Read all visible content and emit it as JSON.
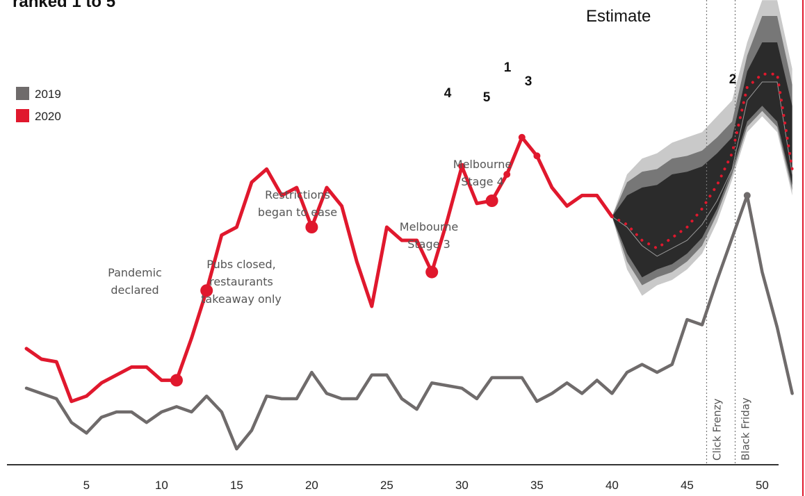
{
  "header": {
    "title_fragment": "ranked 1 to 5",
    "estimate_label": "Estimate"
  },
  "legend": [
    {
      "label": "2019",
      "color": "#6f6b6b"
    },
    {
      "label": "2020",
      "color": "#e0182d"
    }
  ],
  "annotations": [
    {
      "lines": [
        "Pandemic",
        "declared"
      ],
      "week": 11
    },
    {
      "lines": [
        "Pubs closed,",
        "restaurants",
        "takeaway only"
      ],
      "week": 13
    },
    {
      "lines": [
        "Restrictions",
        "began to ease"
      ],
      "week": 20
    },
    {
      "lines": [
        "Melbourne",
        "Stage 3"
      ],
      "week": 28
    },
    {
      "lines": [
        "Melbourne",
        "Stage 4"
      ],
      "week": 32
    }
  ],
  "event_lines": [
    {
      "label": "Click Frenzy",
      "week": 46.3
    },
    {
      "label": "Black Friday",
      "week": 48.2
    }
  ],
  "rank_labels": [
    {
      "label": "1",
      "week": 34
    },
    {
      "label": "2",
      "week": 49
    },
    {
      "label": "3",
      "week": 35
    },
    {
      "label": "4",
      "week": 30
    },
    {
      "label": "5",
      "week": 33
    }
  ],
  "chart_data": {
    "type": "line",
    "x_ticks": [
      5,
      10,
      15,
      20,
      25,
      30,
      35,
      40,
      45,
      50
    ],
    "xlim": [
      1,
      52
    ],
    "series": [
      {
        "name": "2019",
        "color": "#6f6b6b",
        "x": [
          1,
          2,
          3,
          4,
          5,
          6,
          7,
          8,
          9,
          10,
          11,
          12,
          13,
          14,
          15,
          16,
          17,
          18,
          19,
          20,
          21,
          22,
          23,
          24,
          25,
          26,
          27,
          28,
          29,
          30,
          31,
          32,
          33,
          34,
          35,
          36,
          37,
          38,
          39,
          40,
          41,
          42,
          43,
          44,
          45,
          46,
          47,
          48,
          49,
          50,
          51,
          52
        ],
        "y": [
          29,
          27,
          25,
          16,
          12,
          18,
          20,
          20,
          16,
          20,
          22,
          20,
          26,
          20,
          6,
          13,
          26,
          25,
          25,
          35,
          27,
          25,
          25,
          34,
          34,
          25,
          21,
          31,
          30,
          29,
          25,
          33,
          33,
          33,
          24,
          27,
          31,
          27,
          32,
          27,
          35,
          38,
          35,
          38,
          55,
          53,
          70,
          86,
          102,
          73,
          52,
          27
        ]
      },
      {
        "name": "2020",
        "color": "#e0182d",
        "x": [
          1,
          2,
          3,
          4,
          5,
          6,
          7,
          8,
          9,
          10,
          11,
          12,
          13,
          14,
          15,
          16,
          17,
          18,
          19,
          20,
          21,
          22,
          23,
          24,
          25,
          26,
          27,
          28,
          29,
          30,
          31,
          32,
          33,
          34,
          35,
          36,
          37,
          38,
          39,
          40
        ],
        "y": [
          44,
          40,
          39,
          24,
          26,
          31,
          34,
          37,
          37,
          32,
          32,
          48,
          66,
          87,
          90,
          107,
          112,
          102,
          105,
          90,
          105,
          98,
          77,
          60,
          90,
          85,
          85,
          73,
          92,
          113,
          99,
          100,
          110,
          124,
          117,
          105,
          98,
          102,
          102,
          94
        ]
      },
      {
        "name": "Estimate",
        "color": "#e0182d",
        "x": [
          40,
          41,
          42,
          43,
          44,
          45,
          46,
          47,
          48,
          49,
          50,
          51,
          52
        ],
        "y": [
          94,
          91,
          85,
          82,
          86,
          90,
          97,
          106,
          118,
          143,
          148,
          148,
          112
        ]
      }
    ],
    "estimate_bands": {
      "x": [
        40,
        41,
        42,
        43,
        44,
        45,
        46,
        47,
        48,
        49,
        50,
        51,
        52
      ],
      "outer_low": [
        94,
        74,
        64,
        68,
        70,
        74,
        80,
        92,
        108,
        126,
        132,
        126,
        102
      ],
      "outer_high": [
        94,
        110,
        116,
        118,
        122,
        124,
        126,
        132,
        138,
        160,
        176,
        176,
        150
      ],
      "mid_low": [
        94,
        77,
        68,
        71,
        73,
        77,
        83,
        95,
        110,
        128,
        134,
        128,
        104
      ],
      "mid_high": [
        94,
        107,
        111,
        112,
        116,
        117,
        119,
        124,
        130,
        155,
        170,
        170,
        144
      ],
      "inner_low": [
        94,
        80,
        71,
        74,
        76,
        80,
        86,
        97,
        112,
        130,
        136,
        130,
        106
      ],
      "inner_high": [
        94,
        102,
        105,
        106,
        110,
        111,
        113,
        118,
        124,
        149,
        160,
        160,
        136
      ],
      "center": [
        94,
        90,
        83,
        79,
        82,
        85,
        91,
        100,
        112,
        138,
        145,
        145,
        110
      ]
    },
    "highlight_points": {
      "2020": [
        11,
        13,
        20,
        28,
        32
      ],
      "rank_points": [
        30,
        33,
        34,
        35
      ],
      "2019": [
        49
      ]
    },
    "ylim": [
      0,
      170
    ]
  }
}
